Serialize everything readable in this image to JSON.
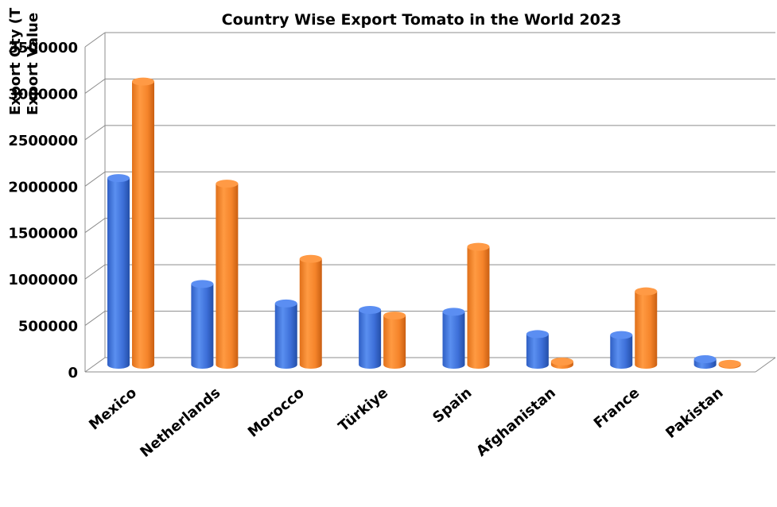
{
  "chart_data": {
    "type": "bar",
    "title": "Country Wise Export Tomato in the World 2023",
    "ylabels": [
      "Export Qty (T",
      "Export Value"
    ],
    "categories": [
      "Mexico",
      "Netherlands",
      "Morocco",
      "Türkiye",
      "Spain",
      "Afghanistan",
      "France",
      "Pakistan"
    ],
    "series": [
      {
        "values": [
          2010000,
          870000,
          660000,
          590000,
          570000,
          330000,
          320000,
          60000
        ]
      },
      {
        "values": [
          3050000,
          1950000,
          1140000,
          530000,
          1270000,
          35000,
          790000,
          10000
        ]
      }
    ],
    "ylim": [
      0,
      3500000
    ],
    "yticks": [
      0,
      500000,
      1000000,
      1500000,
      2000000,
      2500000,
      3000000,
      3500000
    ],
    "grid": true,
    "legend": "none",
    "colors": [
      "#4a7fe0",
      "#ff8c30"
    ]
  }
}
